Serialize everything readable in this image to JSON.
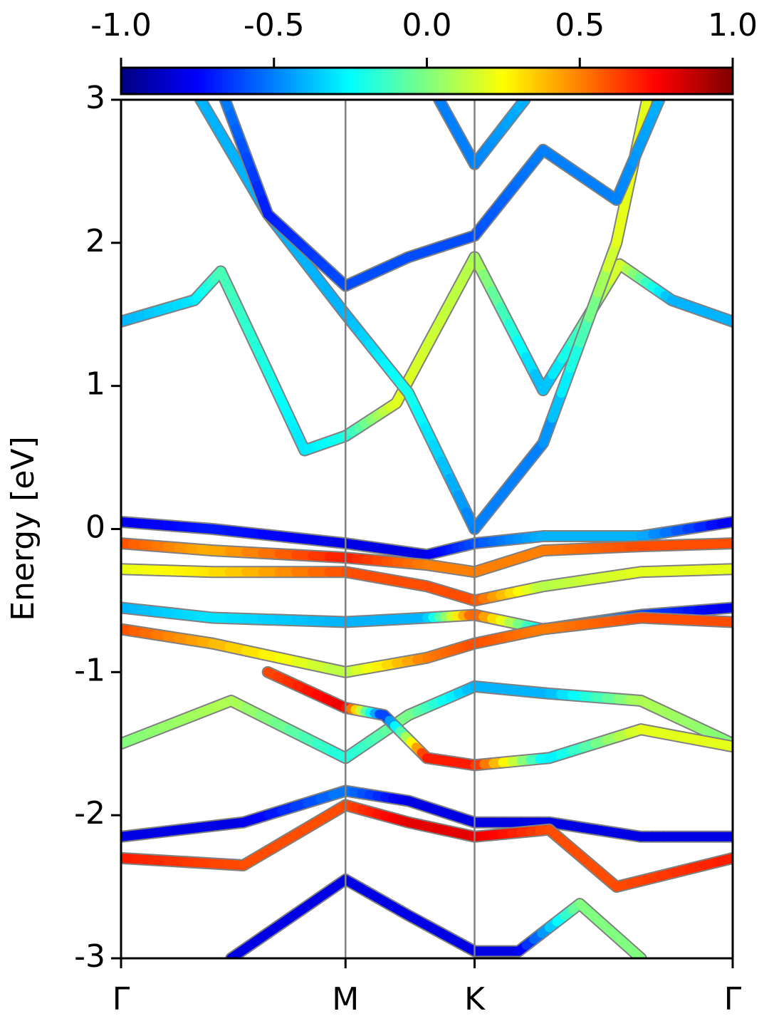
{
  "chart_data": {
    "type": "band-structure",
    "ylabel": "Energy [eV]",
    "xlim": [
      0,
      1
    ],
    "xticks": [
      {
        "value": 0,
        "label": "Γ"
      },
      {
        "value": 0.367,
        "label": "M"
      },
      {
        "value": 0.578,
        "label": "K"
      },
      {
        "value": 1,
        "label": "Γ"
      }
    ],
    "ylim": [
      -3,
      3
    ],
    "yticks": [
      3,
      2,
      1,
      0,
      -1,
      -2,
      -3
    ],
    "clim": [
      -1,
      1
    ],
    "cticks": [
      {
        "value": -1,
        "label": "-1.0"
      },
      {
        "value": -0.5,
        "label": "-0.5"
      },
      {
        "value": 0,
        "label": "0.0"
      },
      {
        "value": 0.5,
        "label": "0.5"
      },
      {
        "value": 1,
        "label": "1.0"
      }
    ],
    "colormap": "jet",
    "series": [
      {
        "x": [
          0,
          0.12,
          0.163,
          0.24,
          0.3,
          0.367,
          0.45,
          0.578,
          0.69,
          0.815,
          0.9,
          1
        ],
        "values": [
          1.45,
          1.6,
          1.8,
          1.1,
          0.55,
          0.65,
          0.88,
          1.9,
          0.97,
          1.85,
          1.6,
          1.45
        ],
        "colors": [
          -0.4,
          -0.3,
          -0.1,
          -0.2,
          -0.3,
          -0.2,
          0.2,
          0.1,
          -0.4,
          0.2,
          -0.4,
          -0.4
        ]
      },
      {
        "x": [
          0.13,
          0.24,
          0.367,
          0.47,
          0.578,
          0.69,
          0.81,
          0.86
        ],
        "values": [
          3.0,
          2.2,
          1.5,
          0.95,
          0.0,
          0.6,
          2.0,
          3.0
        ],
        "colors": [
          -0.4,
          -0.4,
          -0.4,
          -0.2,
          -0.5,
          -0.5,
          0.2,
          0.2
        ]
      },
      {
        "x": [
          0.17,
          0.24,
          0.367,
          0.47,
          0.578,
          0.69,
          0.81,
          0.88
        ],
        "values": [
          3.0,
          2.2,
          1.7,
          1.9,
          2.05,
          2.65,
          2.3,
          3.0
        ],
        "colors": [
          -0.5,
          -0.7,
          -0.6,
          -0.6,
          -0.6,
          -0.5,
          -0.5,
          -0.4
        ]
      },
      {
        "x": [
          0.52,
          0.578,
          0.66
        ],
        "values": [
          3.0,
          2.55,
          3.0
        ],
        "colors": [
          -0.5,
          -0.5,
          -0.4
        ]
      },
      {
        "x": [
          0,
          0.15,
          0.367,
          0.5,
          0.578,
          0.69,
          0.85,
          1
        ],
        "values": [
          0.05,
          0.0,
          -0.1,
          -0.18,
          -0.1,
          -0.05,
          -0.05,
          0.05
        ],
        "colors": [
          -0.8,
          -0.7,
          -0.8,
          -0.8,
          -0.6,
          -0.4,
          -0.4,
          -0.8
        ]
      },
      {
        "x": [
          0,
          0.15,
          0.367,
          0.5,
          0.578,
          0.69,
          0.85,
          1
        ],
        "values": [
          -0.1,
          -0.15,
          -0.2,
          -0.25,
          -0.3,
          -0.15,
          -0.12,
          -0.1
        ],
        "colors": [
          0.6,
          0.4,
          0.7,
          0.5,
          0.5,
          0.5,
          0.6,
          0.6
        ]
      },
      {
        "x": [
          0,
          0.15,
          0.367,
          0.5,
          0.578,
          0.69,
          0.85,
          1
        ],
        "values": [
          -0.28,
          -0.3,
          -0.3,
          -0.4,
          -0.5,
          -0.4,
          -0.3,
          -0.28
        ],
        "colors": [
          0.2,
          0.3,
          0.6,
          0.6,
          0.6,
          0.1,
          0.2,
          0.2
        ]
      },
      {
        "x": [
          0,
          0.15,
          0.367,
          0.5,
          0.578,
          0.69,
          0.85,
          1
        ],
        "values": [
          -0.55,
          -0.62,
          -0.65,
          -0.62,
          -0.6,
          -0.7,
          -0.6,
          -0.55
        ],
        "colors": [
          -0.4,
          -0.3,
          -0.4,
          -0.4,
          0.6,
          -0.3,
          -0.6,
          -0.8
        ]
      },
      {
        "x": [
          0,
          0.15,
          0.367,
          0.5,
          0.578,
          0.69,
          0.85,
          1
        ],
        "values": [
          -0.7,
          -0.8,
          -1.0,
          -0.9,
          -0.8,
          -0.7,
          -0.62,
          -0.65
        ],
        "colors": [
          0.6,
          0.4,
          0.1,
          0.5,
          0.6,
          0.5,
          0.6,
          0.6
        ]
      },
      {
        "x": [
          0,
          0.18,
          0.367,
          0.47,
          0.578,
          0.7,
          0.85,
          1
        ],
        "values": [
          -1.5,
          -1.2,
          -1.6,
          -1.3,
          -1.1,
          -1.15,
          -1.2,
          -1.5
        ],
        "colors": [
          0.0,
          0.1,
          -0.2,
          0.0,
          -0.4,
          -0.4,
          0.1,
          0.0
        ]
      },
      {
        "x": [
          0.24,
          0.367,
          0.43,
          0.5,
          0.578,
          0.7,
          0.85,
          1
        ],
        "values": [
          -1.0,
          -1.25,
          -1.3,
          -1.6,
          -1.65,
          -1.6,
          -1.4,
          -1.52
        ],
        "colors": [
          0.6,
          0.8,
          -0.7,
          0.7,
          0.7,
          -0.3,
          0.2,
          0.2
        ]
      },
      {
        "x": [
          0,
          0.2,
          0.367,
          0.47,
          0.578,
          0.7,
          0.85,
          1
        ],
        "values": [
          -2.15,
          -2.05,
          -1.83,
          -1.9,
          -2.05,
          -2.05,
          -2.15,
          -2.15
        ],
        "colors": [
          -0.8,
          -0.8,
          -0.5,
          -0.8,
          -0.8,
          -0.8,
          -0.8,
          -0.8
        ]
      },
      {
        "x": [
          0,
          0.2,
          0.367,
          0.47,
          0.578,
          0.7,
          0.81,
          1
        ],
        "values": [
          -2.3,
          -2.35,
          -1.93,
          -2.05,
          -2.15,
          -2.1,
          -2.5,
          -2.3
        ],
        "colors": [
          0.7,
          0.6,
          0.6,
          0.8,
          0.8,
          0.6,
          0.6,
          0.7
        ]
      },
      {
        "x": [
          0.18,
          0.367,
          0.47,
          0.578,
          0.65,
          0.75,
          0.85
        ],
        "values": [
          -3.0,
          -2.45,
          -2.7,
          -2.95,
          -2.95,
          -2.62,
          -3.0
        ],
        "colors": [
          -0.8,
          -0.8,
          -0.8,
          -0.8,
          -0.8,
          0.0,
          0.0
        ]
      }
    ]
  }
}
